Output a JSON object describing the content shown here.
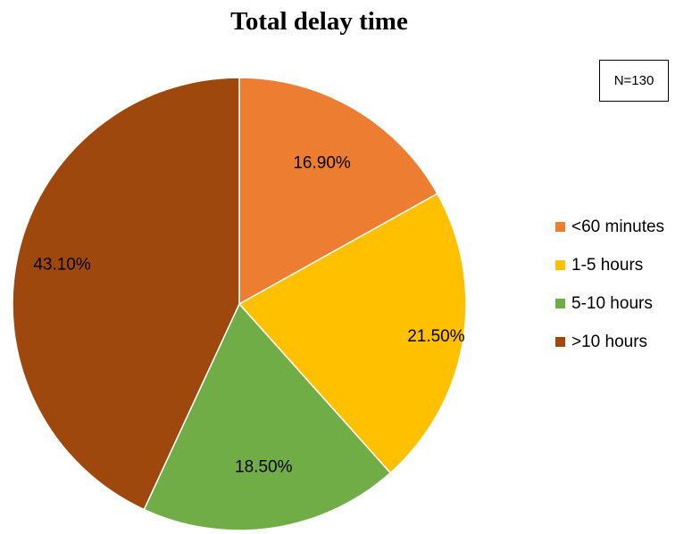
{
  "chart_data": {
    "type": "pie",
    "title": "Total delay time",
    "annotation": "N=130",
    "categories": [
      "<60 minutes",
      "1-5 hours",
      "5-10 hours",
      ">10 hours"
    ],
    "values": [
      16.9,
      21.5,
      18.5,
      43.1
    ],
    "labels": [
      "16.90%",
      "21.50%",
      "18.50%",
      "43.10%"
    ],
    "colors": [
      "#ED7D31",
      "#FFC000",
      "#70AD47",
      "#9E480E"
    ],
    "legend_position": "right",
    "start_angle": "12 o'clock",
    "direction": "clockwise"
  }
}
